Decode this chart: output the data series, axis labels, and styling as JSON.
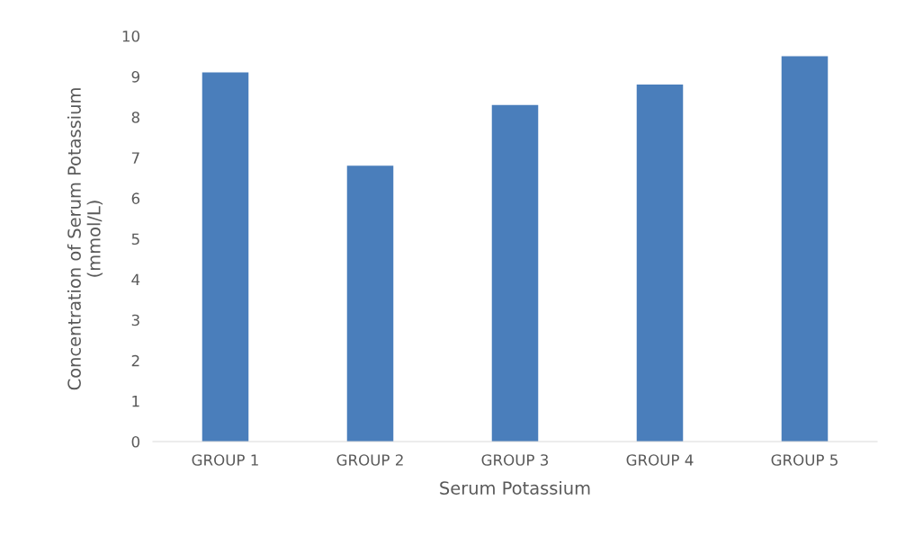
{
  "chart_data": {
    "type": "bar",
    "xlabel": "Serum Potassium",
    "ylabel": "Concentration of Serum Potassium\n(mmol/L)",
    "categories": [
      "GROUP 1",
      "GROUP 2",
      "GROUP 3",
      "GROUP 4",
      "GROUP 5"
    ],
    "values": [
      9.1,
      6.8,
      8.3,
      8.8,
      9.5
    ],
    "color": "#4a7ebb",
    "ylim": [
      0,
      10
    ],
    "yticks": [
      0,
      1,
      2,
      3,
      4,
      5,
      6,
      7,
      8,
      9,
      10
    ],
    "grid": false,
    "legend": false
  }
}
